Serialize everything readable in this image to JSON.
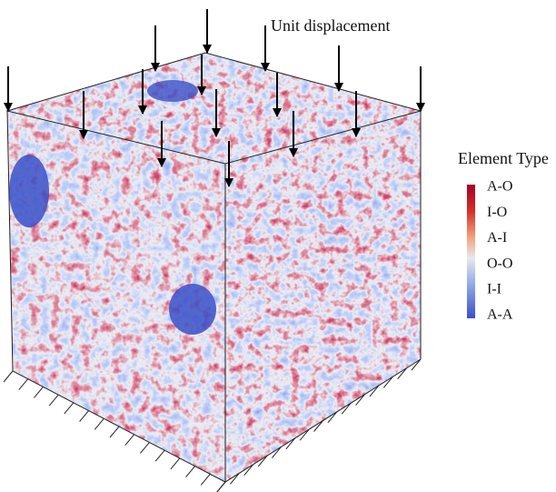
{
  "annotation": "Unit displacement",
  "legend": {
    "title": "Element Type",
    "labels": [
      "A-O",
      "I-O",
      "A-I",
      "O-O",
      "I-I",
      "A-A"
    ]
  }
}
